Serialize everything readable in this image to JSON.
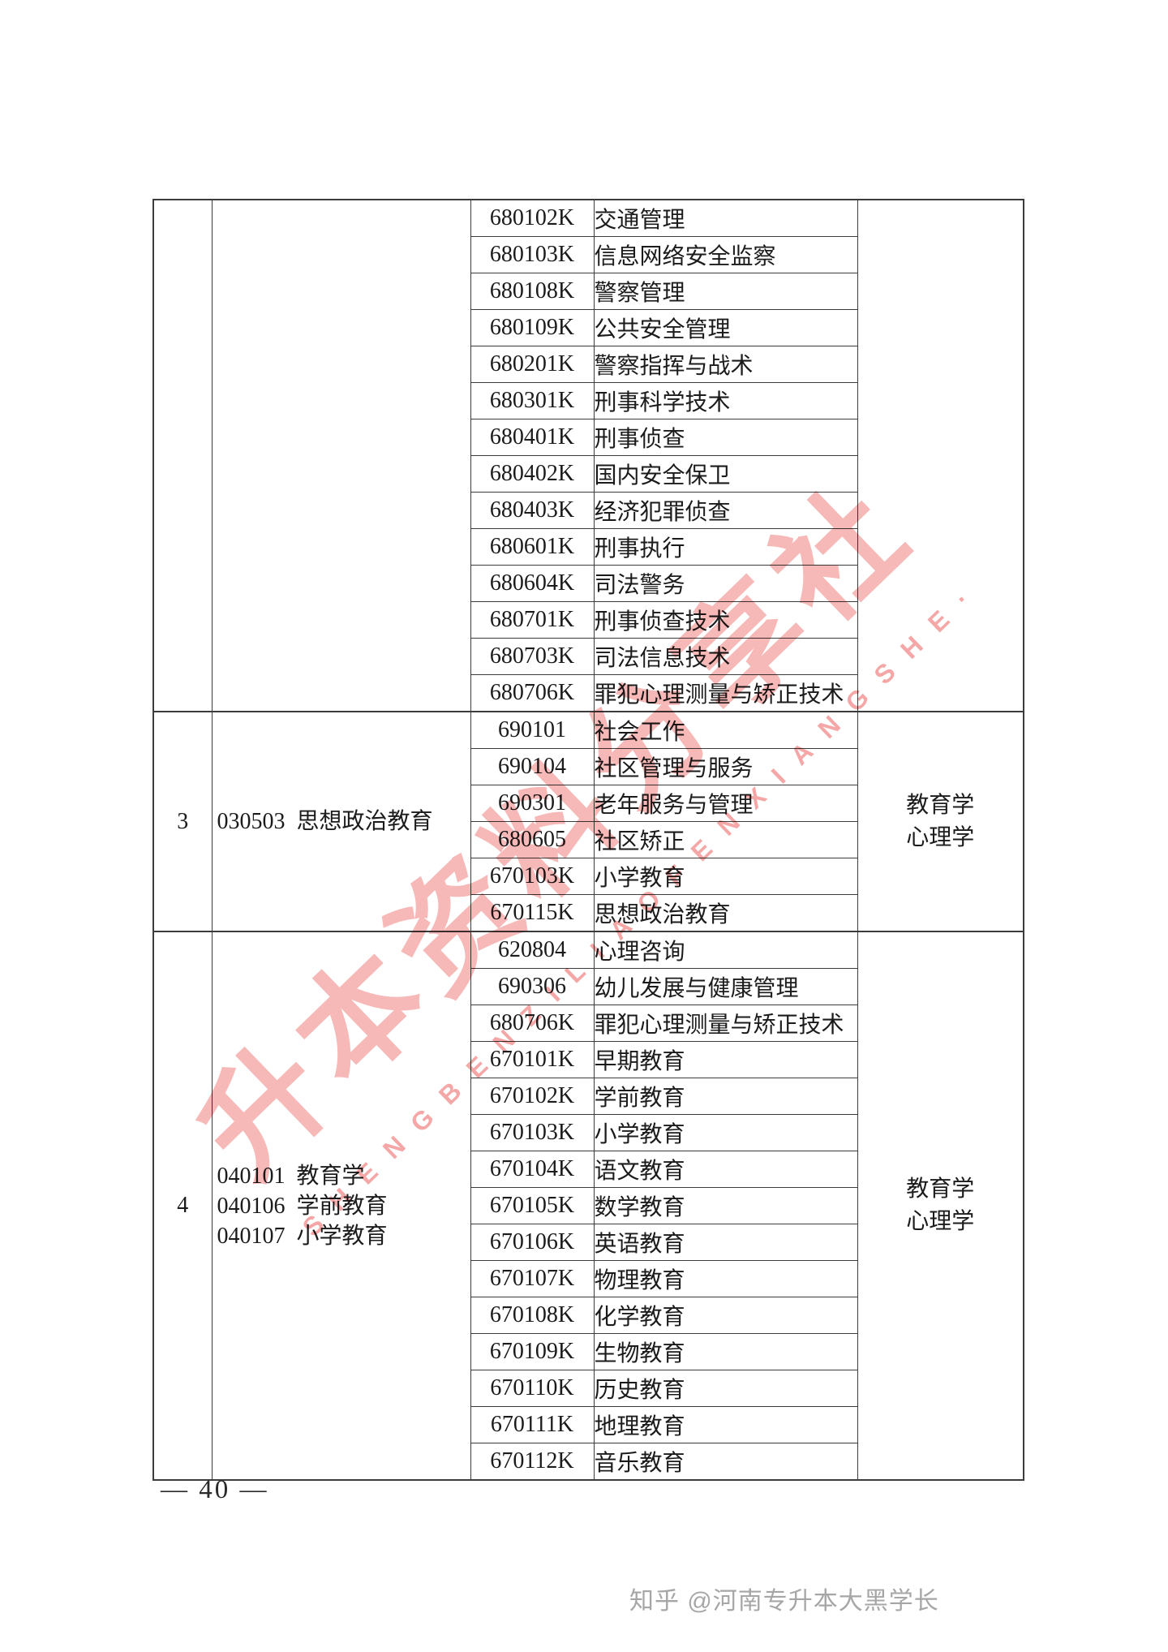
{
  "table": {
    "sections": [
      {
        "seq": "",
        "majors": [],
        "exam_subjects": [],
        "specialties": [
          {
            "code": "680102K",
            "name": "交通管理"
          },
          {
            "code": "680103K",
            "name": "信息网络安全监察"
          },
          {
            "code": "680108K",
            "name": "警察管理"
          },
          {
            "code": "680109K",
            "name": "公共安全管理"
          },
          {
            "code": "680201K",
            "name": "警察指挥与战术"
          },
          {
            "code": "680301K",
            "name": "刑事科学技术"
          },
          {
            "code": "680401K",
            "name": "刑事侦查"
          },
          {
            "code": "680402K",
            "name": "国内安全保卫"
          },
          {
            "code": "680403K",
            "name": "经济犯罪侦查"
          },
          {
            "code": "680601K",
            "name": "刑事执行"
          },
          {
            "code": "680604K",
            "name": "司法警务"
          },
          {
            "code": "680701K",
            "name": "刑事侦查技术"
          },
          {
            "code": "680703K",
            "name": "司法信息技术"
          },
          {
            "code": "680706K",
            "name": "罪犯心理测量与矫正技术"
          }
        ]
      },
      {
        "seq": "3",
        "majors": [
          "030503  思想政治教育"
        ],
        "exam_subjects": [
          "教育学",
          "心理学"
        ],
        "specialties": [
          {
            "code": "690101",
            "name": "社会工作"
          },
          {
            "code": "690104",
            "name": "社区管理与服务"
          },
          {
            "code": "690301",
            "name": "老年服务与管理"
          },
          {
            "code": "680605",
            "name": "社区矫正"
          },
          {
            "code": "670103K",
            "name": "小学教育"
          },
          {
            "code": "670115K",
            "name": "思想政治教育"
          }
        ]
      },
      {
        "seq": "4",
        "majors": [
          "040101  教育学",
          "040106  学前教育",
          "040107  小学教育"
        ],
        "exam_subjects": [
          "教育学",
          "心理学"
        ],
        "specialties": [
          {
            "code": "620804",
            "name": "心理咨询"
          },
          {
            "code": "690306",
            "name": "幼儿发展与健康管理"
          },
          {
            "code": "680706K",
            "name": "罪犯心理测量与矫正技术"
          },
          {
            "code": "670101K",
            "name": "早期教育"
          },
          {
            "code": "670102K",
            "name": "学前教育"
          },
          {
            "code": "670103K",
            "name": "小学教育"
          },
          {
            "code": "670104K",
            "name": "语文教育"
          },
          {
            "code": "670105K",
            "name": "数学教育"
          },
          {
            "code": "670106K",
            "name": "英语教育"
          },
          {
            "code": "670107K",
            "name": "物理教育"
          },
          {
            "code": "670108K",
            "name": "化学教育"
          },
          {
            "code": "670109K",
            "name": "生物教育"
          },
          {
            "code": "670110K",
            "name": "历史教育"
          },
          {
            "code": "670111K",
            "name": "地理教育"
          },
          {
            "code": "670112K",
            "name": "音乐教育"
          }
        ]
      }
    ]
  },
  "watermark": {
    "cn_text": "升本资料分享社",
    "en_text": "SHENGBENZILIAOFENXIANGSHE·",
    "color": "#f08a88"
  },
  "footer": {
    "page_number": "— 40 —",
    "credit": "知乎 @河南专升本大黑学长"
  }
}
